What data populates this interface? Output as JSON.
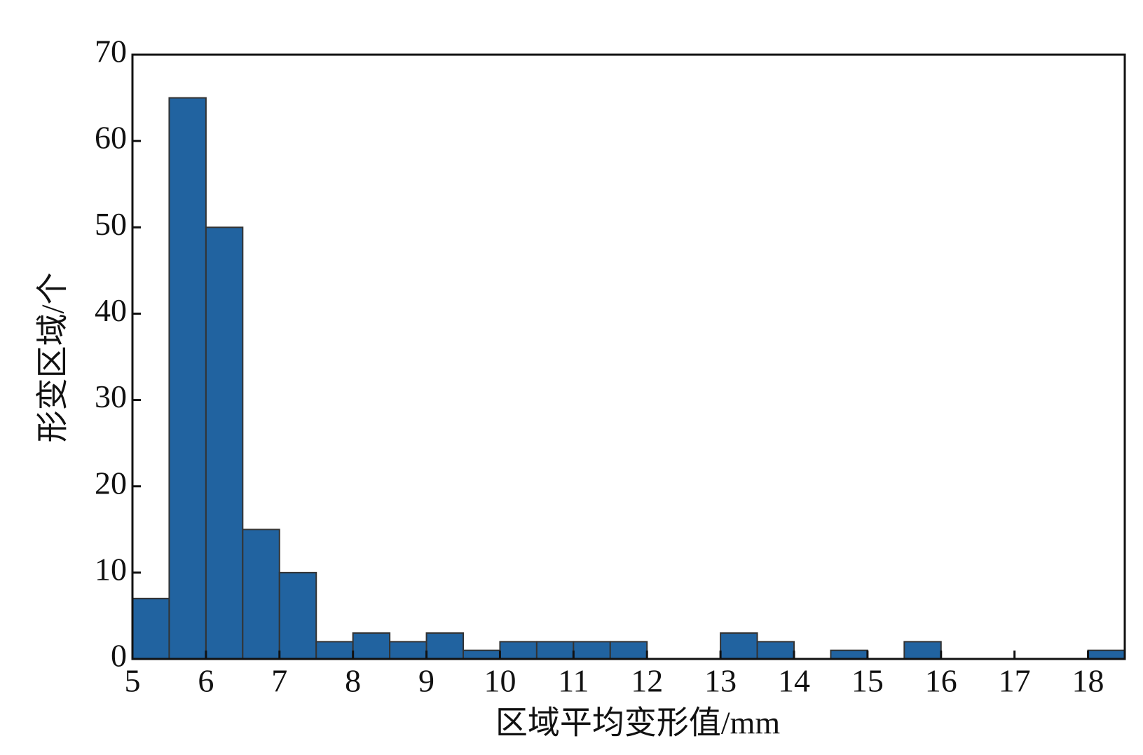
{
  "chart_data": {
    "type": "histogram",
    "x_label": "区域平均变形值/mm",
    "y_label": "形变区域/个",
    "bins": [
      5,
      5.5,
      6,
      6.5,
      7,
      7.5,
      8,
      8.5,
      9,
      9.5,
      10,
      10.5,
      11,
      11.5,
      12,
      12.5,
      13,
      13.5,
      14,
      14.5,
      15,
      15.5,
      16,
      16.5,
      17,
      17.5,
      18,
      18.5
    ],
    "counts": [
      7,
      65,
      50,
      15,
      10,
      2,
      3,
      2,
      3,
      1,
      2,
      2,
      2,
      2,
      0,
      0,
      3,
      2,
      0,
      1,
      0,
      2,
      0,
      0,
      0,
      0,
      1
    ],
    "color": "#2163a0",
    "xlim": [
      5,
      18.5
    ],
    "xticks": [
      5,
      6,
      7,
      8,
      9,
      10,
      11,
      12,
      13,
      14,
      15,
      16,
      17,
      18
    ],
    "ylim": [
      0,
      70
    ],
    "yticks": [
      0,
      10,
      20,
      30,
      40,
      50,
      60,
      70
    ]
  }
}
